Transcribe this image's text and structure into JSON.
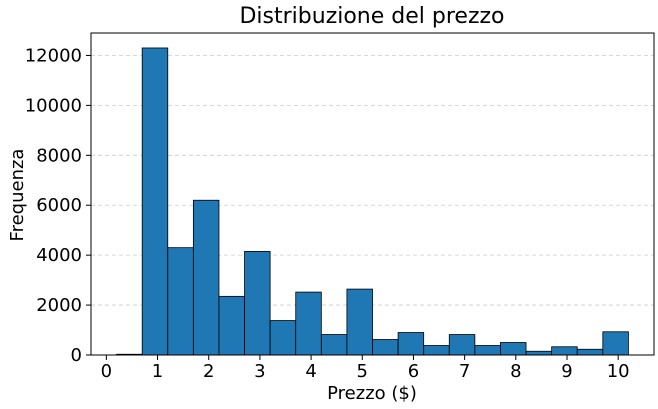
{
  "chart_data": {
    "type": "bar",
    "title": "Distribuzione del prezzo",
    "xlabel": "Prezzo ($)",
    "ylabel": "Frequenza",
    "bin_edges": [
      0.2,
      0.7,
      1.2,
      1.7,
      2.2,
      2.7,
      3.2,
      3.7,
      4.2,
      4.7,
      5.2,
      5.7,
      6.2,
      6.7,
      7.2,
      7.7,
      8.2,
      8.7,
      9.2,
      9.7,
      10.2
    ],
    "values": [
      30,
      12300,
      4300,
      6200,
      2350,
      4150,
      1380,
      2520,
      820,
      2640,
      620,
      900,
      380,
      820,
      380,
      500,
      150,
      330,
      230,
      930
    ],
    "xlim": [
      -0.3,
      10.7
    ],
    "ylim": [
      0,
      12900
    ],
    "xticks": [
      "0",
      "1",
      "2",
      "3",
      "4",
      "5",
      "6",
      "7",
      "8",
      "9",
      "10"
    ],
    "yticks": [
      "0",
      "2000",
      "4000",
      "6000",
      "8000",
      "10000",
      "12000"
    ],
    "grid": "y-dashed",
    "colors": {
      "bar_fill": "#1f77b4",
      "bar_edge": "#000000",
      "grid": "#cccccc",
      "axis": "#000000"
    }
  }
}
